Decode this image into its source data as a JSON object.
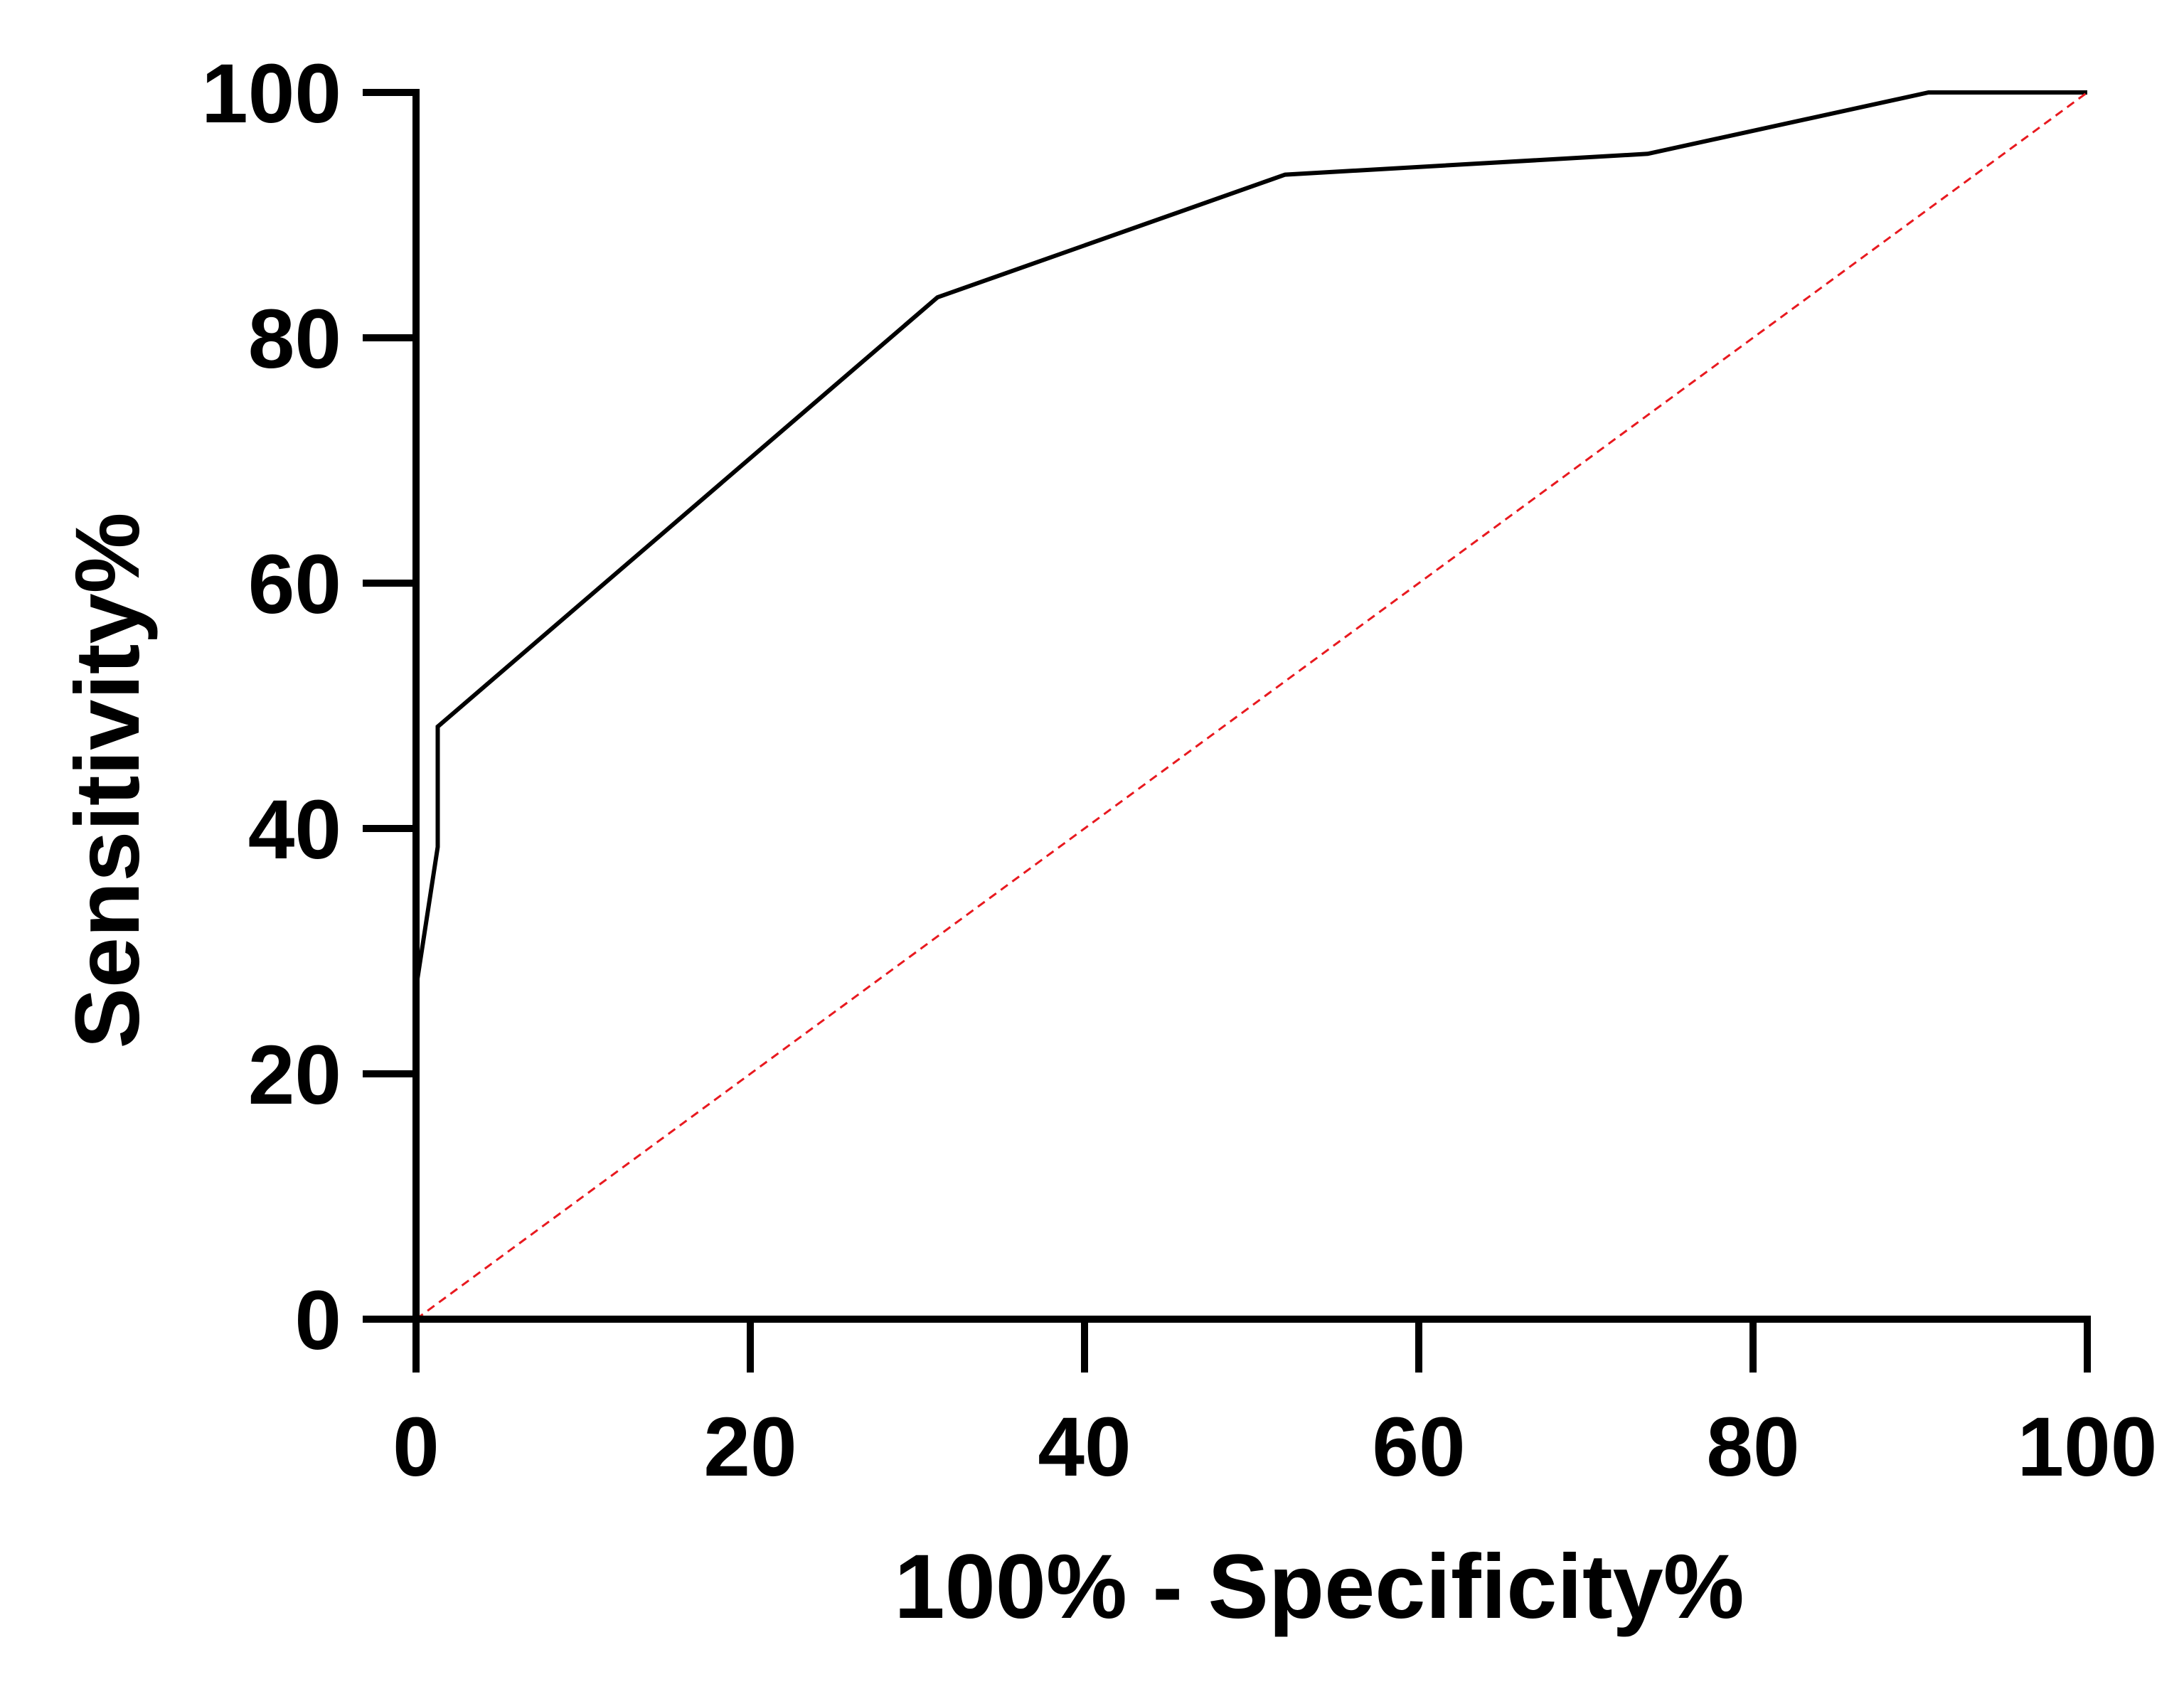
{
  "chart_data": {
    "type": "line",
    "xlabel": "100% - Specificity%",
    "ylabel": "Sensitivity%",
    "xlim": [
      0,
      100
    ],
    "ylim": [
      0,
      100
    ],
    "xticks": [
      "0",
      "20",
      "40",
      "60",
      "80",
      "100"
    ],
    "yticks": [
      "0",
      "20",
      "40",
      "60",
      "80",
      "100"
    ],
    "grid": false,
    "legend": "none",
    "series": [
      {
        "style": "solid",
        "color": "#000000",
        "x": [
          0,
          0,
          1.3,
          1.3,
          31.2,
          52,
          73.7,
          90.5,
          100
        ],
        "y": [
          22,
          27,
          38.5,
          48.3,
          83.3,
          93.3,
          95,
          100,
          100
        ]
      },
      {
        "style": "dashed",
        "color": "#e8191f",
        "x": [
          0,
          100
        ],
        "y": [
          0,
          100
        ]
      }
    ]
  }
}
